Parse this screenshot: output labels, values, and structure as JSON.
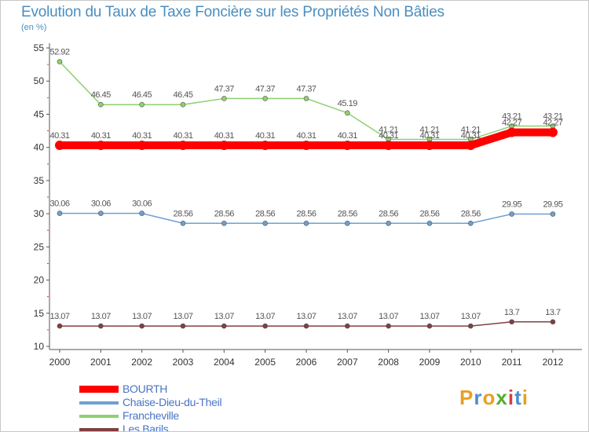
{
  "title": "Evolution du Taux de Taxe Foncière sur les Propriétés Non Bâties",
  "subtitle": "(en %)",
  "logo": {
    "text": "Proxiti",
    "letters": [
      "P",
      "r",
      "o",
      "x",
      "i",
      "t",
      "i"
    ],
    "colors": [
      "#e8a020",
      "#4a90d0",
      "#e8a020",
      "#50b030",
      "#d04040",
      "#4a90d0",
      "#e8a020"
    ]
  },
  "chart_data": {
    "type": "line",
    "title": "Evolution du Taux de Taxe Foncière sur les Propriétés Non Bâties",
    "ylabel": "(en %)",
    "xlabel": "",
    "x": [
      "2000",
      "2001",
      "2002",
      "2003",
      "2004",
      "2005",
      "2006",
      "2007",
      "2008",
      "2009",
      "2010",
      "2011",
      "2012"
    ],
    "ylim": [
      10,
      55
    ],
    "yticks": [
      10,
      15,
      20,
      25,
      30,
      35,
      40,
      45,
      50,
      55
    ],
    "grid": false,
    "legend_position": "bottom-left",
    "series": [
      {
        "name": "BOURTH",
        "color": "#ff0000",
        "values": [
          40.31,
          40.31,
          40.31,
          40.31,
          40.31,
          40.31,
          40.31,
          40.31,
          40.31,
          40.31,
          40.31,
          42.27,
          42.27
        ],
        "labels": [
          "40.31",
          "40.31",
          "40.31",
          "40.31",
          "40.31",
          "40.31",
          "40.31",
          "40.31",
          "40.31",
          "40.31",
          "40.31",
          "42.27",
          "42.27"
        ]
      },
      {
        "name": "Chaise-Dieu-du-Theil",
        "color": "#6fa0cf",
        "values": [
          30.06,
          30.06,
          30.06,
          28.56,
          28.56,
          28.56,
          28.56,
          28.56,
          28.56,
          28.56,
          28.56,
          29.95,
          29.95
        ],
        "labels": [
          "30.06",
          "30.06",
          "30.06",
          "28.56",
          "28.56",
          "28.56",
          "28.56",
          "28.56",
          "28.56",
          "28.56",
          "28.56",
          "29.95",
          "29.95"
        ]
      },
      {
        "name": "Francheville",
        "color": "#8fd070",
        "values": [
          52.92,
          46.45,
          46.45,
          46.45,
          47.37,
          47.37,
          47.37,
          45.19,
          41.21,
          41.21,
          41.21,
          43.21,
          43.21
        ],
        "labels": [
          "52.92",
          "46.45",
          "46.45",
          "46.45",
          "47.37",
          "47.37",
          "47.37",
          "45.19",
          "41.21",
          "41.21",
          "41.21",
          "43.21",
          "43.21"
        ]
      },
      {
        "name": "Les Barils",
        "color": "#804040",
        "values": [
          13.07,
          13.07,
          13.07,
          13.07,
          13.07,
          13.07,
          13.07,
          13.07,
          13.07,
          13.07,
          13.07,
          13.7,
          13.7
        ],
        "labels": [
          "13.07",
          "13.07",
          "13.07",
          "13.07",
          "13.07",
          "13.07",
          "13.07",
          "13.07",
          "13.07",
          "13.07",
          "13.07",
          "13.7",
          "13.7"
        ]
      }
    ]
  }
}
